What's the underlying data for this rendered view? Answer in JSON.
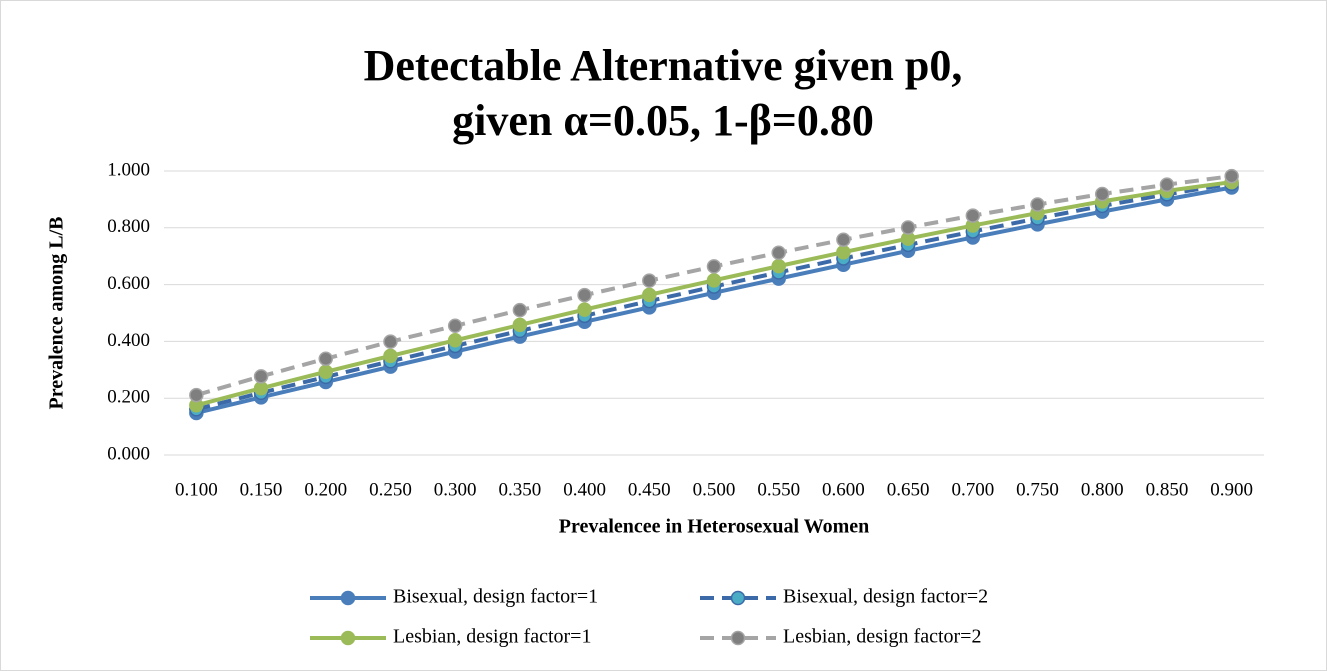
{
  "chart_data": {
    "type": "line",
    "title": "Detectable Alternative given p0,",
    "subtitle": "given α=0.05, 1-β=0.80",
    "x_label": "Prevalencee in Heterosexual Women",
    "y_label": "Prevalence among L/B",
    "categories": [
      "0.100",
      "0.150",
      "0.200",
      "0.250",
      "0.300",
      "0.350",
      "0.400",
      "0.450",
      "0.500",
      "0.550",
      "0.600",
      "0.650",
      "0.700",
      "0.750",
      "0.800",
      "0.850",
      "0.900"
    ],
    "ylim": [
      0,
      1
    ],
    "yticks": [
      {
        "value": 0,
        "label": "0.000"
      },
      {
        "value": 0.2,
        "label": "0.200"
      },
      {
        "value": 0.4,
        "label": "0.400"
      },
      {
        "value": 0.6,
        "label": "0.600"
      },
      {
        "value": 0.8,
        "label": "0.800"
      },
      {
        "value": 1,
        "label": "1.000"
      }
    ],
    "grid": true,
    "legend": "bottom",
    "series": [
      {
        "name": "Bisexual, design factor=1",
        "color": "#4a7ebb",
        "marker_color": "#4a7ebb",
        "dash": false,
        "values": [
          0.148,
          0.203,
          0.257,
          0.311,
          0.364,
          0.417,
          0.469,
          0.52,
          0.571,
          0.621,
          0.67,
          0.719,
          0.766,
          0.812,
          0.857,
          0.9,
          0.942
        ]
      },
      {
        "name": "Bisexual, design factor=2",
        "color": "#3c6aa8",
        "marker_color": "#4bacc6",
        "dash": true,
        "values": [
          0.161,
          0.219,
          0.275,
          0.33,
          0.384,
          0.437,
          0.49,
          0.542,
          0.593,
          0.643,
          0.692,
          0.74,
          0.787,
          0.833,
          0.877,
          0.918,
          0.955
        ]
      },
      {
        "name": "Lesbian, design factor=1",
        "color": "#9bbb59",
        "marker_color": "#9bbb59",
        "dash": false,
        "values": [
          0.175,
          0.235,
          0.293,
          0.349,
          0.404,
          0.458,
          0.512,
          0.564,
          0.615,
          0.665,
          0.714,
          0.762,
          0.808,
          0.852,
          0.893,
          0.93,
          0.961
        ]
      },
      {
        "name": "Lesbian, design factor=2",
        "color": "#a5a5a5",
        "marker_color": "#7f7f7f",
        "dash": true,
        "values": [
          0.211,
          0.277,
          0.339,
          0.399,
          0.455,
          0.51,
          0.563,
          0.614,
          0.664,
          0.712,
          0.758,
          0.801,
          0.843,
          0.882,
          0.919,
          0.952,
          0.982
        ]
      }
    ]
  }
}
